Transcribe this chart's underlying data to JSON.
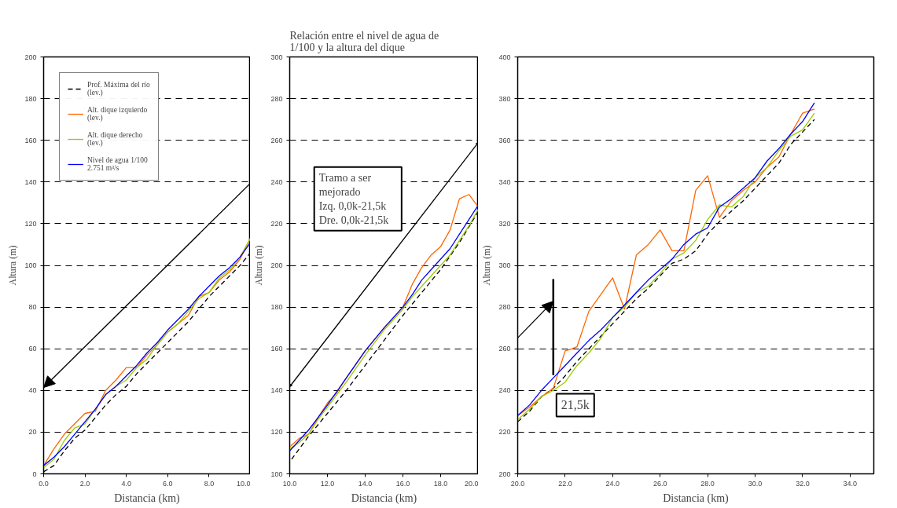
{
  "chart_data": [
    {
      "type": "line",
      "xlabel": "Distancia (km)",
      "ylabel": "Altura (m)",
      "xlim": [
        0,
        10
      ],
      "ylim": [
        0,
        200
      ],
      "xticks": [
        {
          "value": 0,
          "label": "0.0"
        },
        {
          "value": 2,
          "label": "2.0"
        },
        {
          "value": 4,
          "label": "4.0"
        },
        {
          "value": 6,
          "label": "6.0"
        },
        {
          "value": 8,
          "label": "8.0"
        },
        {
          "value": 10,
          "label": "10.0"
        }
      ],
      "yticks": [
        0,
        20,
        40,
        60,
        80,
        100,
        120,
        140,
        160,
        180,
        200
      ],
      "grid": "y",
      "legend": "top left",
      "series": [
        {
          "name": "Prof. Máxima del río (lev.)",
          "color": "#000000",
          "line_style": "dashed",
          "x": [
            0,
            0.5,
            1,
            1.5,
            2,
            2.5,
            3,
            3.5,
            4,
            4.5,
            5,
            5.5,
            6,
            6.5,
            7,
            7.5,
            8,
            8.5,
            9,
            9.5,
            10
          ],
          "values": [
            1,
            4,
            11,
            17,
            21,
            27,
            33,
            38,
            42,
            48,
            53,
            58,
            63,
            68,
            73,
            79,
            85,
            90,
            95,
            100,
            106
          ]
        },
        {
          "name": "Alt. dique izquierdo (lev.)",
          "color": "#ff6600",
          "line_style": "solid",
          "x": [
            0,
            0.5,
            1,
            1.5,
            2,
            2.5,
            3,
            3.5,
            4,
            4.5,
            5,
            5.5,
            6,
            6.5,
            7,
            7.5,
            8,
            8.5,
            9,
            9.5,
            10
          ],
          "values": [
            4,
            12,
            19,
            24,
            29,
            30,
            40,
            45,
            51,
            51,
            57,
            62,
            68,
            72,
            76,
            85,
            87,
            93,
            97,
            103,
            113
          ]
        },
        {
          "name": "Alt. dique derecho (lev.)",
          "color": "#99cc00",
          "line_style": "solid",
          "x": [
            0,
            0.5,
            1,
            1.5,
            2,
            2.5,
            3,
            3.5,
            4,
            4.5,
            5,
            5.5,
            6,
            6.5,
            7,
            7.5,
            8,
            8.5,
            9,
            9.5,
            10
          ],
          "values": [
            3,
            7,
            16,
            22,
            24,
            31,
            38,
            42,
            45,
            51,
            55,
            62,
            68,
            72,
            78,
            84,
            87,
            94,
            98,
            104,
            113
          ]
        },
        {
          "name": "Nivel de agua 1/100 2.751 m³/s",
          "color": "#0000ff",
          "line_style": "solid",
          "x": [
            0,
            0.5,
            1,
            1.5,
            2,
            2.5,
            3,
            3.5,
            4,
            4.5,
            5,
            5.5,
            6,
            6.5,
            7,
            7.5,
            8,
            8.5,
            9,
            9.5,
            10
          ],
          "values": [
            4,
            8,
            13,
            19,
            25,
            31,
            38,
            42,
            47,
            52,
            58,
            63,
            69,
            74,
            79,
            85,
            90,
            95,
            99,
            104,
            111
          ]
        }
      ]
    },
    {
      "type": "line",
      "title": "Relación entre el nivel de agua de 1/100 y la altura del dique",
      "xlabel": "Distancia (km)",
      "ylabel": "Altura (m)",
      "xlim": [
        10,
        20
      ],
      "ylim": [
        100,
        300
      ],
      "xticks": [
        {
          "value": 10,
          "label": "10.0"
        },
        {
          "value": 12,
          "label": "12.0"
        },
        {
          "value": 14,
          "label": "14.0"
        },
        {
          "value": 16,
          "label": "16.0"
        },
        {
          "value": 18,
          "label": "18.0"
        },
        {
          "value": 20,
          "label": "20.0"
        }
      ],
      "yticks": [
        100,
        120,
        140,
        160,
        180,
        200,
        220,
        240,
        260,
        280,
        300
      ],
      "grid": "y",
      "annotations": [
        "Tramo a ser\nmejorado\nIzq.    0,0k-21,5k\nDre.    0,0k-21,5k"
      ],
      "series": [
        {
          "color": "#000000",
          "line_style": "dashed",
          "x": [
            10.1,
            11,
            12,
            13,
            14,
            15,
            16,
            17,
            18,
            19,
            20
          ],
          "values": [
            107,
            118,
            129,
            140,
            152,
            164,
            176,
            187,
            198,
            211,
            226
          ]
        },
        {
          "color": "#ff6600",
          "line_style": "solid",
          "x": [
            10,
            10.5,
            11,
            11.5,
            12,
            12.5,
            13,
            14,
            15,
            16,
            16.5,
            17,
            17.5,
            18,
            18.5,
            19,
            19.5,
            20
          ],
          "values": [
            113,
            117,
            119,
            127,
            134,
            139,
            146,
            159,
            170,
            180,
            191,
            199,
            205,
            209,
            217,
            232,
            234,
            228
          ]
        },
        {
          "color": "#99cc00",
          "line_style": "solid",
          "x": [
            10,
            10.5,
            11,
            11.5,
            12,
            13,
            14,
            15,
            16,
            16.5,
            17,
            17.5,
            18,
            18.5,
            19,
            19.5,
            20
          ],
          "values": [
            112,
            115,
            119,
            126,
            132,
            144,
            157,
            169,
            179,
            185,
            190,
            195,
            200,
            205,
            212,
            219,
            227
          ]
        },
        {
          "color": "#0000ff",
          "line_style": "solid",
          "x": [
            10,
            10.5,
            11,
            11.5,
            12,
            13,
            14,
            15,
            16,
            16.5,
            17,
            17.5,
            18,
            18.5,
            19,
            19.5,
            20
          ],
          "values": [
            111,
            116,
            121,
            127,
            133,
            146,
            159,
            170,
            180,
            186,
            193,
            198,
            203,
            208,
            215,
            222,
            229
          ]
        }
      ]
    },
    {
      "type": "line",
      "xlabel": "Distancia (km)",
      "ylabel": "Altura (m)",
      "xlim": [
        20,
        35
      ],
      "ylim": [
        200,
        400
      ],
      "xticks": [
        {
          "value": 20,
          "label": "20.0"
        },
        {
          "value": 22,
          "label": "22.0"
        },
        {
          "value": 24,
          "label": "24.0"
        },
        {
          "value": 26,
          "label": "26.0"
        },
        {
          "value": 28,
          "label": "28.0"
        },
        {
          "value": 30,
          "label": "30.0"
        },
        {
          "value": 32,
          "label": "32.0"
        },
        {
          "value": 34,
          "label": "34.0"
        }
      ],
      "yticks": [
        200,
        220,
        240,
        260,
        280,
        300,
        320,
        340,
        360,
        380,
        400
      ],
      "grid": "y",
      "annotations": [
        "21,5k"
      ],
      "series": [
        {
          "color": "#000000",
          "line_style": "dashed",
          "x": [
            20,
            20.5,
            21,
            21.5,
            22,
            22.5,
            23,
            23.5,
            24,
            24.5,
            25,
            25.5,
            26,
            26.5,
            27,
            27.5,
            28,
            28.5,
            29,
            29.5,
            30,
            30.5,
            31,
            31.5,
            32,
            32.5
          ],
          "values": [
            225,
            230,
            237,
            241,
            247,
            254,
            260,
            266,
            272,
            278,
            284,
            289,
            295,
            301,
            303,
            307,
            315,
            321,
            326,
            331,
            337,
            343,
            349,
            358,
            364,
            370
          ]
        },
        {
          "color": "#ff6600",
          "line_style": "solid",
          "x": [
            20,
            20.5,
            21,
            21.5,
            22,
            22.3,
            22.5,
            23,
            23.5,
            24,
            24.5,
            25,
            25.5,
            26,
            26.5,
            27,
            27.5,
            28,
            28.5,
            29,
            29.5,
            30,
            30.5,
            31,
            31.5,
            32,
            32.5
          ],
          "values": [
            228,
            232,
            237,
            241,
            259,
            260,
            261,
            278,
            286,
            294,
            279,
            305,
            310,
            317,
            307,
            307,
            336,
            343,
            323,
            331,
            336,
            340,
            347,
            352,
            363,
            373,
            375
          ]
        },
        {
          "color": "#99cc00",
          "line_style": "solid",
          "x": [
            20,
            20.5,
            21,
            21.5,
            22,
            22.5,
            23,
            23.5,
            24,
            24.5,
            25,
            25.5,
            26,
            26.5,
            27,
            27.5,
            28,
            28.5,
            29,
            29.5,
            30,
            30.5,
            31,
            31.5,
            32,
            32.5
          ],
          "values": [
            226,
            231,
            237,
            240,
            244,
            252,
            258,
            265,
            275,
            280,
            287,
            290,
            296,
            303,
            306,
            312,
            322,
            329,
            328,
            333,
            342,
            347,
            355,
            362,
            365,
            373
          ]
        },
        {
          "color": "#0000ff",
          "line_style": "solid",
          "x": [
            20,
            20.5,
            21,
            21.5,
            22,
            22.5,
            23,
            23.5,
            24,
            24.5,
            25,
            25.5,
            26,
            26.5,
            27,
            27.5,
            28,
            28.5,
            29,
            29.5,
            30,
            30.5,
            31,
            31.5,
            32,
            32.5
          ],
          "values": [
            228,
            233,
            240,
            246,
            252,
            258,
            264,
            269,
            275,
            281,
            287,
            293,
            298,
            303,
            310,
            315,
            318,
            328,
            332,
            337,
            342,
            350,
            356,
            363,
            369,
            378
          ]
        }
      ]
    }
  ]
}
